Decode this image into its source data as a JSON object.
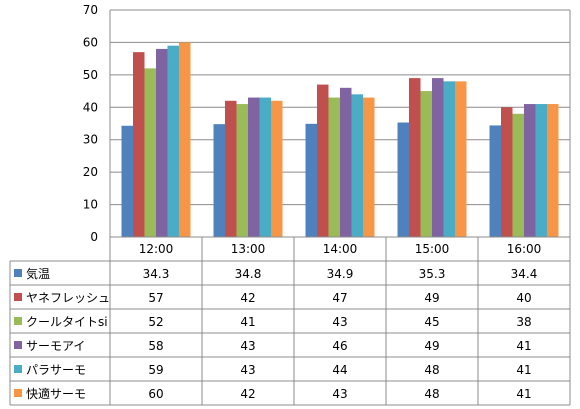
{
  "chart_data": {
    "type": "bar",
    "categories": [
      "12:00",
      "13:00",
      "14:00",
      "15:00",
      "16:00"
    ],
    "ylim": [
      0,
      70
    ],
    "yticks": [
      0,
      10,
      20,
      30,
      40,
      50,
      60,
      70
    ],
    "grid": true,
    "legend": "data-table",
    "title": "",
    "xlabel": "",
    "ylabel": "",
    "series": [
      {
        "name": "気温",
        "color": "#4F81BD",
        "values": [
          34.3,
          34.8,
          34.9,
          35.3,
          34.4
        ]
      },
      {
        "name": "ヤネフレッシュ",
        "color": "#C0504D",
        "values": [
          57,
          42,
          47,
          49,
          40
        ]
      },
      {
        "name": "クールタイトsi",
        "color": "#9BBB59",
        "values": [
          52,
          41,
          43,
          45,
          38
        ]
      },
      {
        "name": "サーモアイ",
        "color": "#8064A2",
        "values": [
          58,
          43,
          46,
          49,
          41
        ]
      },
      {
        "name": "パラサーモ",
        "color": "#4BACC6",
        "values": [
          59,
          43,
          44,
          48,
          41
        ]
      },
      {
        "name": "快適サーモ",
        "color": "#F79646",
        "values": [
          60,
          42,
          43,
          48,
          41
        ]
      }
    ]
  }
}
